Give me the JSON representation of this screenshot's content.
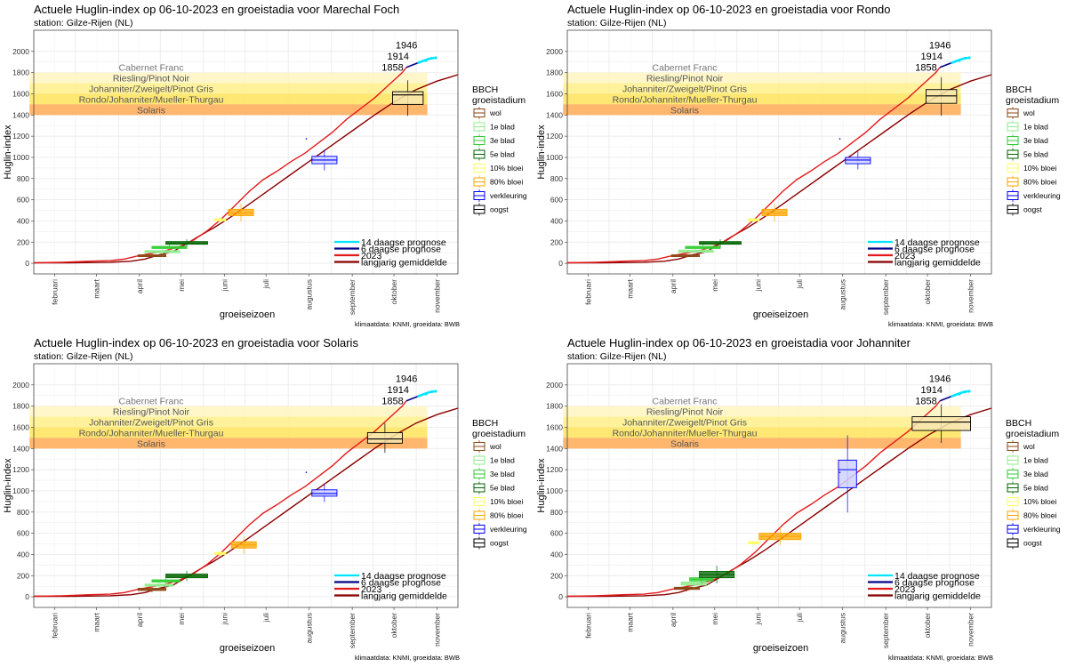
{
  "colors": {
    "ripening_bands": [
      "#FFF6BF",
      "#FFF08A",
      "#FFE35C",
      "#FFCA66",
      "#FFB36B"
    ],
    "line_2023": "#e31a1c",
    "line_avg": "#8b0000",
    "line_6d": "#00008b",
    "line_14d": "#00e5ff",
    "stages": [
      "#8b4513",
      "#90ee90",
      "#32cd32",
      "#006400",
      "#ffff66",
      "#ffa500",
      "#0000ff",
      "#000000"
    ]
  },
  "common": {
    "subtitle": "station: Gilze-Rijen (NL)",
    "xlabel": "groeiseizoen",
    "ylabel": "Huglin-index",
    "caption": "klimaatdata: KNMI, groeidata: BWB",
    "legend_title_1": "BBCH",
    "legend_title_2": "groeistadium",
    "stage_labels": [
      "wol",
      "1e blad",
      "3e blad",
      "5e blad",
      "10% bloei",
      "80% bloei",
      "verkleuring",
      "oogst"
    ],
    "band_labels": [
      "Cabernet Franc",
      "Riesling/Pinot Noir",
      "Johanniter/Zweigelt/Pinot Gris",
      "Rondo/Johanniter/Mueller-Thurgau",
      "Solaris"
    ],
    "bottom_legend": [
      "14 daagse prognose",
      "6 daagse prognose",
      "2023",
      "langjarig gemiddelde"
    ],
    "year_labels": [
      "1946",
      "1914",
      "1858"
    ],
    "month_labels": [
      "februari",
      "maart",
      "april",
      "mei",
      "juni",
      "juli",
      "augustus",
      "september",
      "oktober",
      "november"
    ],
    "y_ticks": [
      "0",
      "200",
      "400",
      "600",
      "800",
      "1000",
      "1200",
      "1400",
      "1600",
      "1800",
      "2000"
    ]
  },
  "chart_data": [
    {
      "type": "line",
      "title": "Actuele Huglin-index op 06-10-2023 en groeistadia voor Marechal Foch",
      "xlabel": "groeiseizoen",
      "ylabel": "Huglin-index",
      "ylim": [
        0,
        2000
      ],
      "ripening_bands": [
        {
          "label": "Cabernet Franc",
          "from": 1700,
          "to": 1800
        },
        {
          "label": "Riesling/Pinot Noir",
          "from": 1600,
          "to": 1700
        },
        {
          "label": "Johanniter/Zweigelt/Pinot Gris",
          "from": 1500,
          "to": 1600
        },
        {
          "label": "Rondo/Johanniter/Mueller-Thurgau",
          "from": 1400,
          "to": 1500
        },
        {
          "label": "Solaris",
          "from": 1400,
          "to": 1500
        }
      ],
      "stages": [
        {
          "label": "wol",
          "x0": 75,
          "x1": 95,
          "q1": 70,
          "med": 75,
          "q3": 80
        },
        {
          "label": "1e blad",
          "x0": 80,
          "x1": 105,
          "q1": 100,
          "med": 110,
          "q3": 120
        },
        {
          "label": "3e blad",
          "x0": 85,
          "x1": 110,
          "q1": 140,
          "med": 150,
          "q3": 160
        },
        {
          "label": "5e blad",
          "x0": 95,
          "x1": 125,
          "q1": 180,
          "med": 192,
          "q3": 205
        },
        {
          "label": "10% bloei",
          "x0": 130,
          "x1": 138,
          "q1": 400,
          "med": 410,
          "q3": 420
        },
        {
          "label": "80% bloei",
          "x0": 140,
          "x1": 158,
          "q1": 450,
          "med": 475,
          "q3": 510
        },
        {
          "label": "verkleuring",
          "x0": 200,
          "x1": 218,
          "q1": 940,
          "med": 975,
          "q3": 1010
        },
        {
          "label": "oogst",
          "x0": 258,
          "x1": 280,
          "q1": 1500,
          "med": 1590,
          "q3": 1620
        }
      ]
    },
    {
      "type": "line",
      "title": "Actuele Huglin-index op 06-10-2023 en groeistadia voor Rondo",
      "xlabel": "groeiseizoen",
      "ylabel": "Huglin-index",
      "ylim": [
        0,
        2000
      ],
      "stages": [
        {
          "label": "wol",
          "x0": 75,
          "x1": 95,
          "q1": 70,
          "med": 75,
          "q3": 80
        },
        {
          "label": "1e blad",
          "x0": 80,
          "x1": 105,
          "q1": 105,
          "med": 115,
          "q3": 125
        },
        {
          "label": "3e blad",
          "x0": 85,
          "x1": 110,
          "q1": 140,
          "med": 150,
          "q3": 160
        },
        {
          "label": "5e blad",
          "x0": 95,
          "x1": 125,
          "q1": 180,
          "med": 192,
          "q3": 205
        },
        {
          "label": "10% bloei",
          "x0": 130,
          "x1": 138,
          "q1": 400,
          "med": 410,
          "q3": 420
        },
        {
          "label": "80% bloei",
          "x0": 140,
          "x1": 158,
          "q1": 450,
          "med": 475,
          "q3": 510
        },
        {
          "label": "verkleuring",
          "x0": 200,
          "x1": 218,
          "q1": 940,
          "med": 975,
          "q3": 1000
        },
        {
          "label": "oogst",
          "x0": 258,
          "x1": 280,
          "q1": 1510,
          "med": 1580,
          "q3": 1640
        }
      ]
    },
    {
      "type": "line",
      "title": "Actuele Huglin-index op 06-10-2023 en groeistadia voor Solaris",
      "xlabel": "groeiseizoen",
      "ylabel": "Huglin-index",
      "ylim": [
        0,
        2000
      ],
      "stages": [
        {
          "label": "wol",
          "x0": 75,
          "x1": 95,
          "q1": 60,
          "med": 70,
          "q3": 80
        },
        {
          "label": "1e blad",
          "x0": 80,
          "x1": 100,
          "q1": 100,
          "med": 110,
          "q3": 120
        },
        {
          "label": "3e blad",
          "x0": 85,
          "x1": 105,
          "q1": 140,
          "med": 150,
          "q3": 160
        },
        {
          "label": "5e blad",
          "x0": 95,
          "x1": 125,
          "q1": 180,
          "med": 195,
          "q3": 215
        },
        {
          "label": "10% bloei",
          "x0": 130,
          "x1": 138,
          "q1": 400,
          "med": 410,
          "q3": 420
        },
        {
          "label": "80% bloei",
          "x0": 142,
          "x1": 160,
          "q1": 460,
          "med": 490,
          "q3": 520
        },
        {
          "label": "verkleuring",
          "x0": 200,
          "x1": 218,
          "q1": 950,
          "med": 975,
          "q3": 1010
        },
        {
          "label": "oogst",
          "x0": 240,
          "x1": 265,
          "q1": 1450,
          "med": 1490,
          "q3": 1550
        }
      ]
    },
    {
      "type": "line",
      "title": "Actuele Huglin-index op 06-10-2023 en groeistadia voor Johanniter",
      "xlabel": "groeiseizoen",
      "ylabel": "Huglin-index",
      "ylim": [
        0,
        2000
      ],
      "stages": [
        {
          "label": "wol",
          "x0": 77,
          "x1": 95,
          "q1": 70,
          "med": 80,
          "q3": 90
        },
        {
          "label": "1e blad",
          "x0": 82,
          "x1": 100,
          "q1": 110,
          "med": 125,
          "q3": 140
        },
        {
          "label": "3e blad",
          "x0": 88,
          "x1": 105,
          "q1": 150,
          "med": 165,
          "q3": 180
        },
        {
          "label": "5e blad",
          "x0": 95,
          "x1": 120,
          "q1": 180,
          "med": 210,
          "q3": 240
        },
        {
          "label": "10% bloei",
          "x0": 130,
          "x1": 138,
          "q1": 500,
          "med": 510,
          "q3": 520
        },
        {
          "label": "80% bloei",
          "x0": 138,
          "x1": 168,
          "q1": 540,
          "med": 570,
          "q3": 600
        },
        {
          "label": "verkleuring",
          "x0": 195,
          "x1": 208,
          "q1": 1030,
          "med": 1200,
          "q3": 1290
        },
        {
          "label": "oogst",
          "x0": 248,
          "x1": 290,
          "q1": 1570,
          "med": 1650,
          "q3": 1700
        }
      ]
    }
  ]
}
